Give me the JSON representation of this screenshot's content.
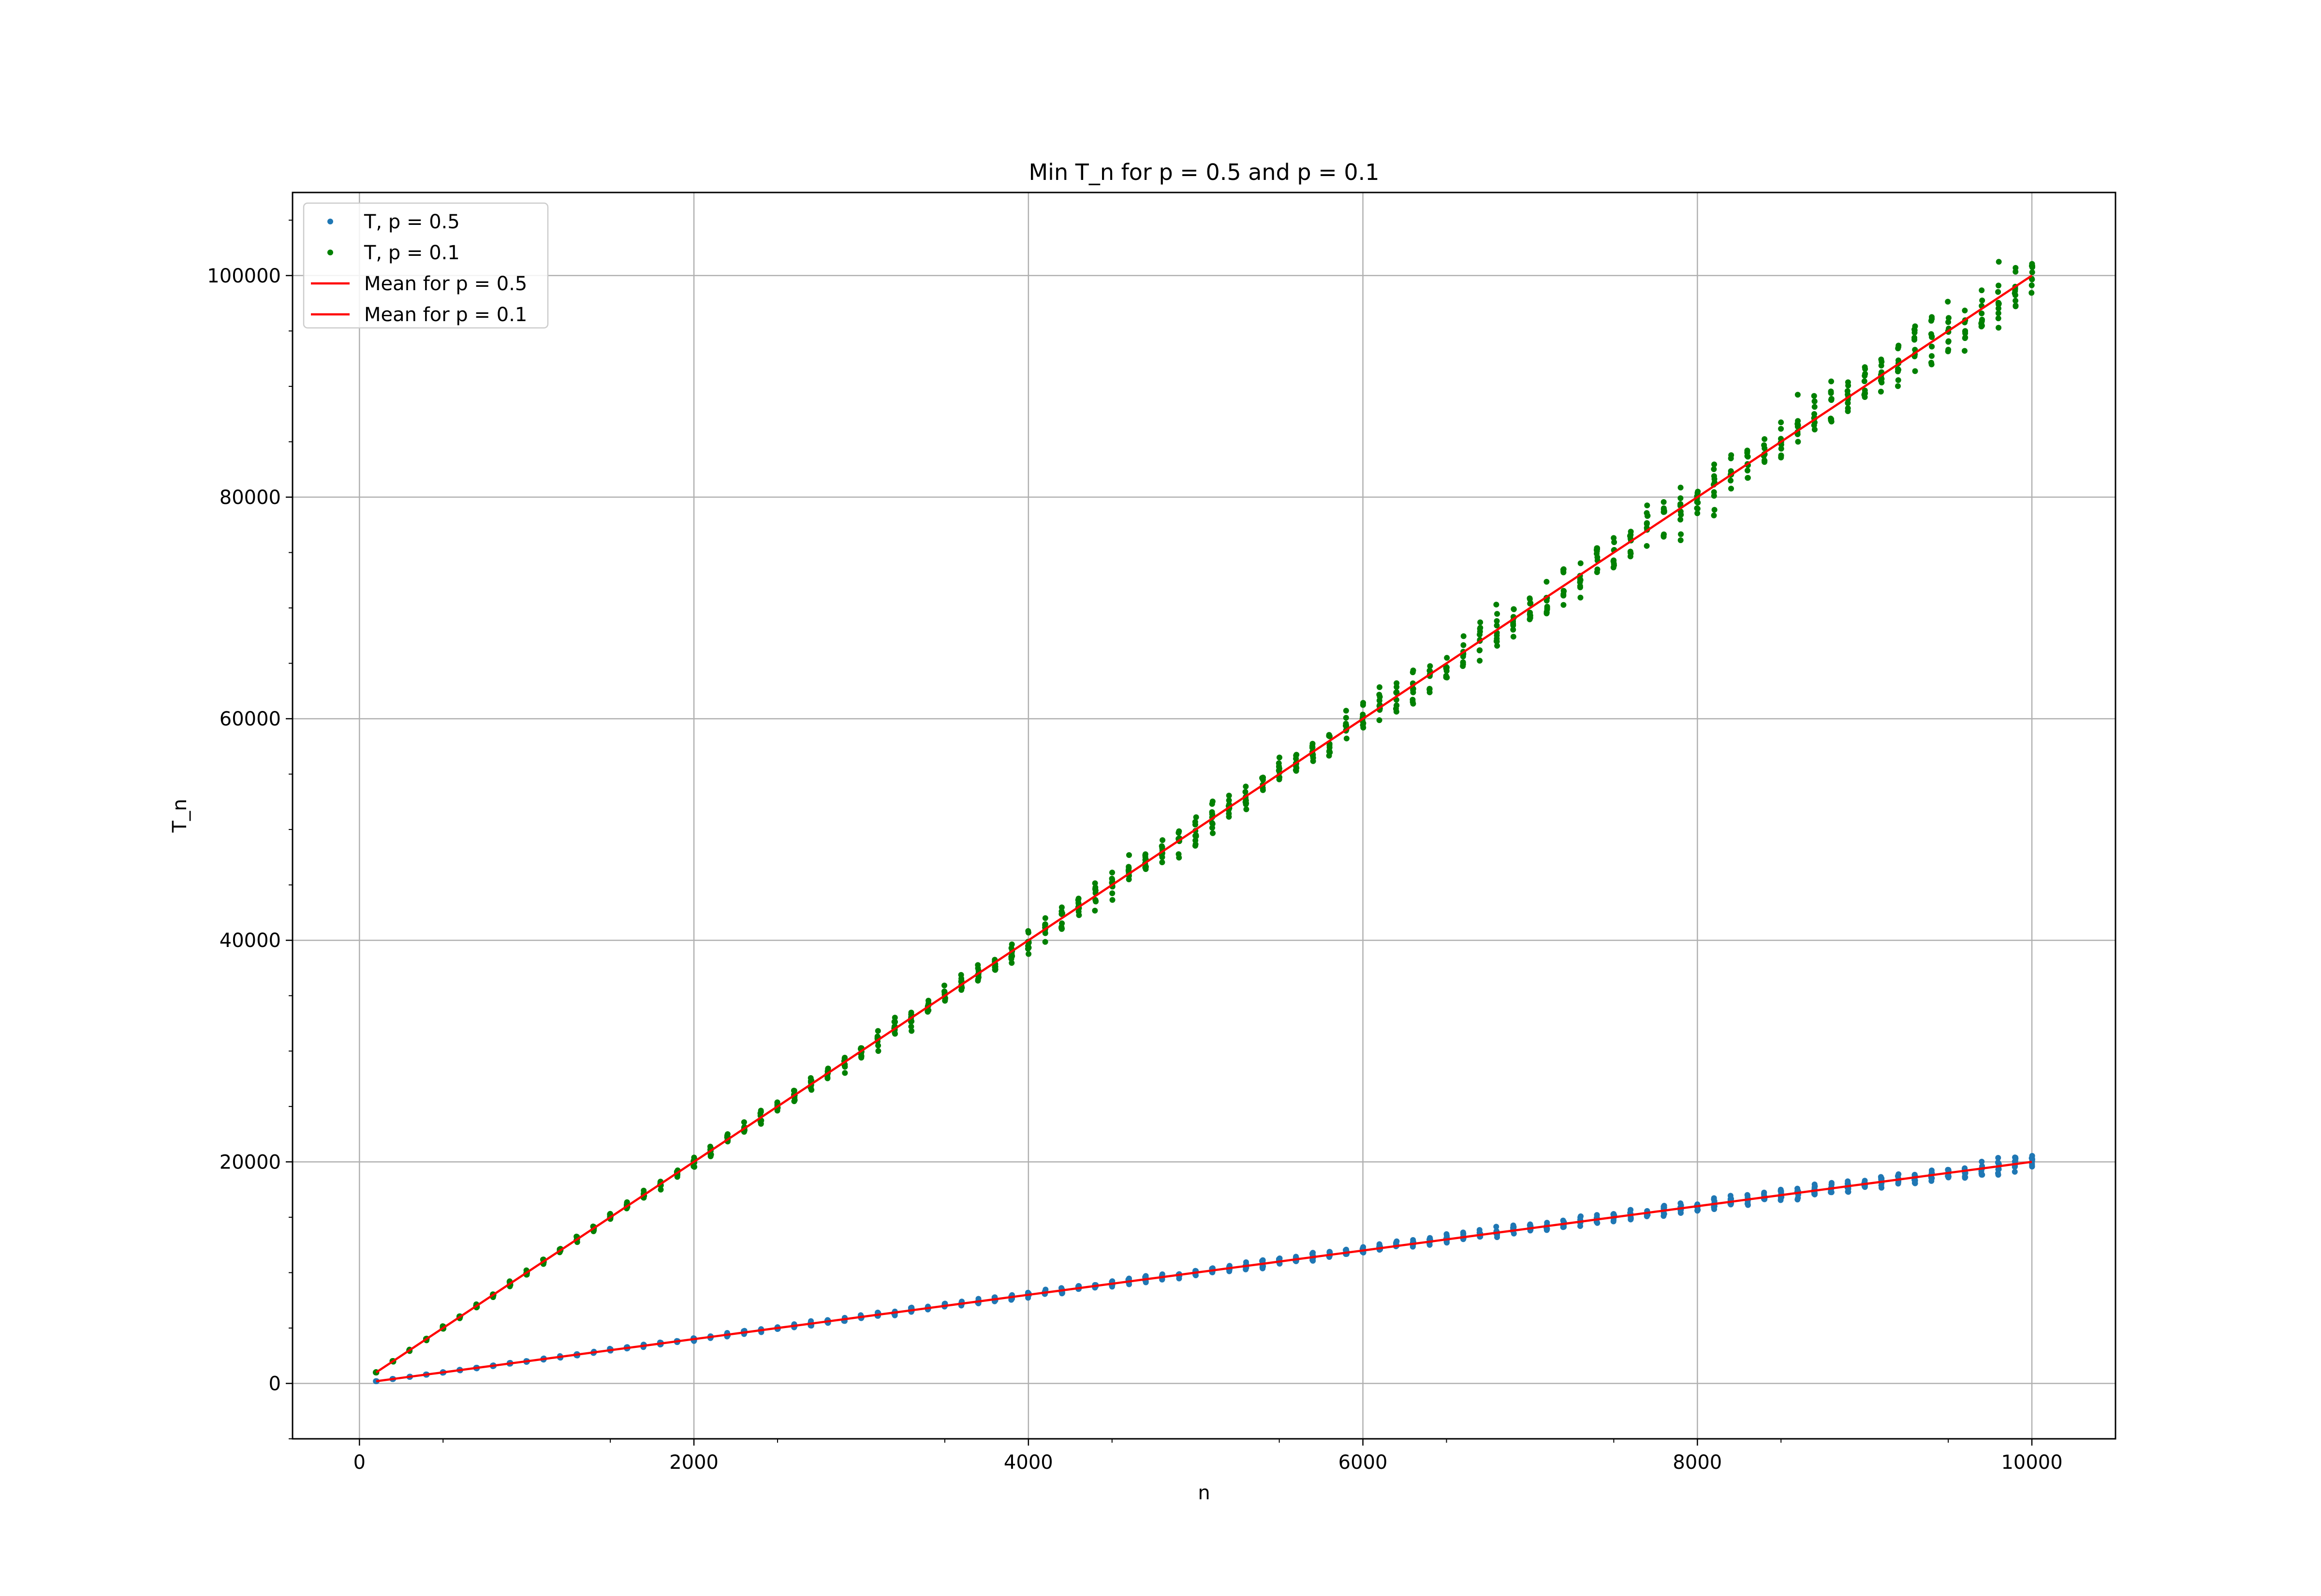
{
  "chart_data": {
    "type": "scatter",
    "title": "Min T_n for p = 0.5 and p = 0.1",
    "xlabel": "n",
    "ylabel": "T_n",
    "xlim": [
      -400,
      10500
    ],
    "ylim": [
      -5000,
      107500
    ],
    "xticks": [
      0,
      2000,
      4000,
      6000,
      8000,
      10000
    ],
    "yticks": [
      0,
      20000,
      40000,
      60000,
      80000,
      100000
    ],
    "grid": true,
    "legend_position": "top-left",
    "x_range": {
      "start": 100,
      "end": 10000,
      "step": 100
    },
    "series": [
      {
        "name": "T, p = 0.5",
        "kind": "scatter",
        "color": "#1f77b4",
        "slope": 2,
        "spread": 0.03,
        "samples_per_n": 10
      },
      {
        "name": "T, p = 0.1",
        "kind": "scatter",
        "color": "#008000",
        "slope": 10,
        "spread": 0.025,
        "samples_per_n": 10
      },
      {
        "name": "Mean for p = 0.5",
        "kind": "line",
        "color": "#ff0000",
        "slope": 2
      },
      {
        "name": "Mean for p = 0.1",
        "kind": "line",
        "color": "#ff0000",
        "slope": 10
      }
    ]
  }
}
